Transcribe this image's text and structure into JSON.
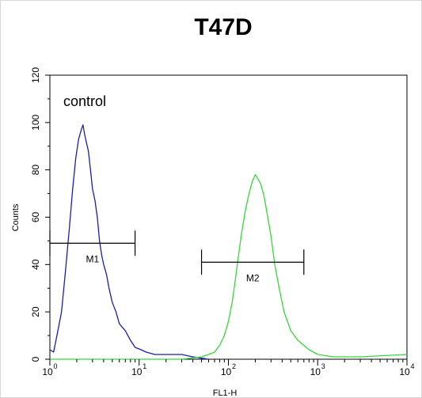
{
  "chart_data": {
    "type": "line",
    "title": "T47D",
    "xlabel": "FL1-H",
    "ylabel": "Counts",
    "xscale": "log",
    "xlim": [
      1,
      10000
    ],
    "ylim": [
      0,
      120
    ],
    "x_ticks": [
      {
        "base": "10",
        "exp": "0"
      },
      {
        "base": "10",
        "exp": "1"
      },
      {
        "base": "10",
        "exp": "2"
      },
      {
        "base": "10",
        "exp": "3"
      },
      {
        "base": "10",
        "exp": "4"
      }
    ],
    "y_ticks": [
      "0",
      "20",
      "40",
      "60",
      "80",
      "100",
      "120"
    ],
    "annotation": "control",
    "gates": [
      {
        "label": "M1",
        "x_range": [
          1.0,
          9.0
        ],
        "y": 49
      },
      {
        "label": "M2",
        "x_range": [
          50,
          700
        ],
        "y": 41
      }
    ],
    "series": [
      {
        "color": "#1b1fa8",
        "x": [
          1.0,
          1.1,
          1.2,
          1.35,
          1.5,
          1.65,
          1.8,
          1.95,
          2.1,
          2.25,
          2.35,
          2.45,
          2.55,
          2.7,
          2.85,
          3.0,
          3.2,
          3.4,
          3.6,
          3.8,
          4.0,
          4.3,
          4.6,
          5.0,
          5.5,
          6.0,
          7.0,
          8.0,
          9.0,
          10.5,
          12.0,
          15.0,
          20.0,
          30.0,
          40.0,
          60.0
        ],
        "y": [
          4,
          3,
          10,
          20,
          38,
          55,
          72,
          85,
          93,
          97,
          99,
          95,
          92,
          88,
          80,
          72,
          67,
          60,
          50,
          44,
          40,
          36,
          30,
          24,
          20,
          15,
          12,
          8,
          5,
          4,
          3,
          2,
          2,
          2,
          1,
          0
        ]
      },
      {
        "color": "#39d63b",
        "x": [
          1.0,
          10.0,
          30.0,
          50.0,
          60.0,
          70.0,
          80.0,
          90.0,
          100.0,
          110.0,
          120.0,
          130.0,
          140.0,
          155.0,
          170.0,
          185.0,
          200.0,
          215.0,
          230.0,
          250.0,
          270.0,
          300.0,
          330.0,
          370.0,
          420.0,
          500.0,
          600.0,
          800.0,
          1000.0,
          1500.0,
          3000.0,
          10000.0
        ],
        "y": [
          0,
          0,
          0,
          1,
          2,
          3,
          6,
          10,
          16,
          24,
          34,
          44,
          53,
          63,
          70,
          75,
          78,
          76,
          74,
          69,
          62,
          52,
          40,
          30,
          20,
          12,
          8,
          4,
          2,
          1,
          1,
          2
        ]
      }
    ]
  }
}
